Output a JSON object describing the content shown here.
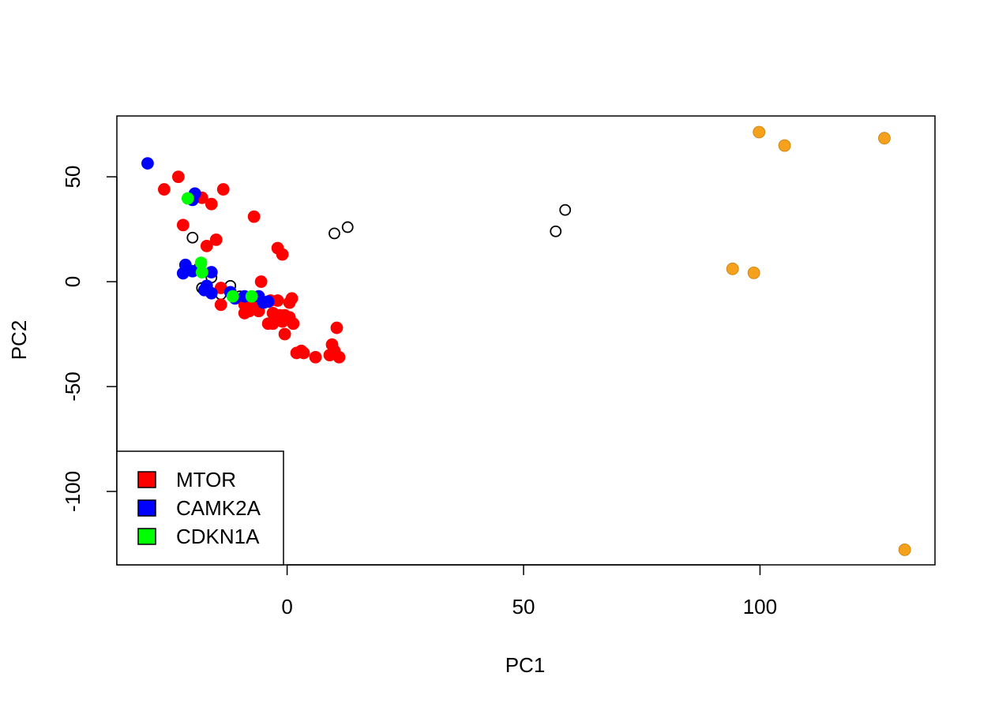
{
  "chart_data": {
    "type": "scatter",
    "title": "",
    "xlabel": "PC1",
    "ylabel": "PC2",
    "xlim": [
      -36,
      137
    ],
    "ylim": [
      -135,
      79
    ],
    "xticks": [
      0,
      50,
      100
    ],
    "yticks": [
      50,
      0,
      -50,
      -100
    ],
    "grid": false,
    "legend_position": "bottom-left",
    "legend": [
      {
        "label": "MTOR",
        "color": "#ff0000"
      },
      {
        "label": "CAMK2A",
        "color": "#0000ff"
      },
      {
        "label": "CDKN1A",
        "color": "#00ff00"
      }
    ],
    "series": [
      {
        "group": "open",
        "color": "#000000",
        "filled": false,
        "points": [
          [
            -20,
            21
          ],
          [
            10,
            23
          ],
          [
            12.8,
            26
          ],
          [
            56.8,
            24
          ],
          [
            58.8,
            34.2
          ],
          [
            -18.5,
            7
          ],
          [
            -16,
            2
          ],
          [
            -18,
            -3
          ],
          [
            -12,
            -2
          ],
          [
            -14,
            -6
          ],
          [
            -10,
            -7
          ]
        ]
      },
      {
        "group": "other",
        "color": "#f5a11c",
        "filled": true,
        "points": [
          [
            99.8,
            71.3
          ],
          [
            105.2,
            64.9
          ],
          [
            126.3,
            68.4
          ],
          [
            94.2,
            6.1
          ],
          [
            98.7,
            4.2
          ],
          [
            130.6,
            -127.8
          ]
        ]
      },
      {
        "name": "MTOR",
        "color": "#ff0000",
        "filled": true,
        "points": [
          [
            -26,
            44
          ],
          [
            -23,
            50
          ],
          [
            -18,
            40
          ],
          [
            -16,
            37
          ],
          [
            -13.5,
            44
          ],
          [
            -22,
            27
          ],
          [
            -15,
            20
          ],
          [
            -7,
            31
          ],
          [
            -17,
            17
          ],
          [
            -2,
            16
          ],
          [
            -1,
            13
          ],
          [
            -14,
            -3
          ],
          [
            -14,
            -11
          ],
          [
            -9,
            -11
          ],
          [
            -8,
            -14
          ],
          [
            -6,
            -14
          ],
          [
            -5.5,
            0
          ],
          [
            -3.5,
            -9
          ],
          [
            -2,
            -9
          ],
          [
            -3,
            -15
          ],
          [
            -1.5,
            -16
          ],
          [
            -0.5,
            -16
          ],
          [
            0.5,
            -17
          ],
          [
            -3,
            -20
          ],
          [
            -1,
            -19
          ],
          [
            -0.5,
            -25
          ],
          [
            0.5,
            -10
          ],
          [
            1,
            -8
          ],
          [
            1.3,
            -20
          ],
          [
            2,
            -34
          ],
          [
            3,
            -33
          ],
          [
            3.5,
            -34
          ],
          [
            6,
            -36
          ],
          [
            9,
            -35
          ],
          [
            9.5,
            -30
          ],
          [
            10,
            -33
          ],
          [
            10.5,
            -22
          ],
          [
            11,
            -36
          ],
          [
            -2,
            -17
          ],
          [
            -4,
            -20
          ],
          [
            -9,
            -15
          ],
          [
            -7,
            -10
          ]
        ]
      },
      {
        "name": "CAMK2A",
        "color": "#0000ff",
        "filled": true,
        "points": [
          [
            -29.5,
            56.4
          ],
          [
            -19.5,
            42
          ],
          [
            -20,
            39
          ],
          [
            -21.5,
            8
          ],
          [
            -20,
            5
          ],
          [
            -22,
            4
          ],
          [
            -16,
            4.5
          ],
          [
            -17,
            -2
          ],
          [
            -17.5,
            -4
          ],
          [
            -16,
            -5.5
          ],
          [
            -12,
            -5
          ],
          [
            -11,
            -8
          ],
          [
            -9,
            -7
          ],
          [
            -6,
            -7
          ],
          [
            -5,
            -10
          ],
          [
            -4,
            -9.5
          ]
        ]
      },
      {
        "name": "CDKN1A",
        "color": "#00ff00",
        "filled": true,
        "points": [
          [
            -21,
            39.7
          ],
          [
            -18.2,
            9
          ],
          [
            -18,
            4.5
          ],
          [
            -11.5,
            -7
          ],
          [
            -7.5,
            -7
          ]
        ]
      }
    ]
  }
}
